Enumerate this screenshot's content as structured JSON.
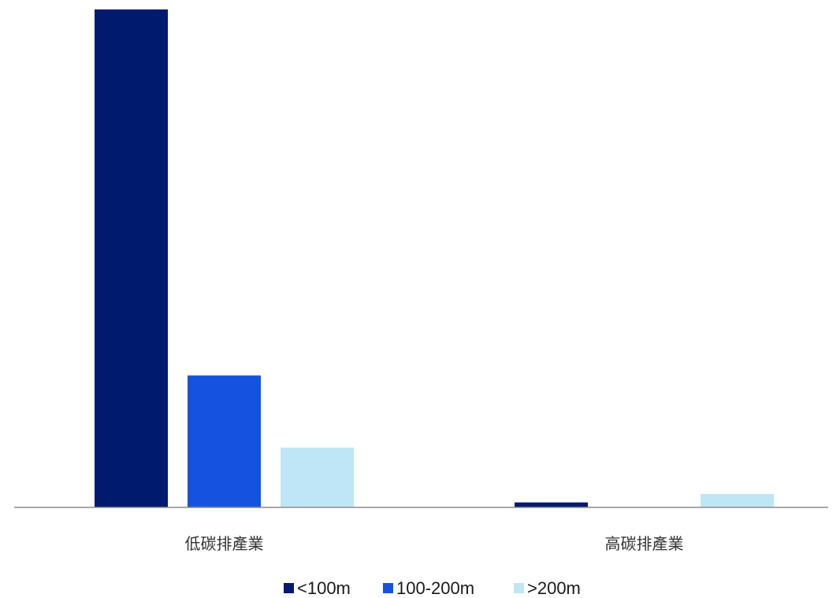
{
  "chart_data": {
    "type": "bar",
    "title": "",
    "xlabel": "",
    "ylabel": "",
    "categories": [
      "低碳排產業",
      "高碳排產業"
    ],
    "series": [
      {
        "name": "<100m",
        "color": "#001a6e",
        "values": [
          100,
          1.0
        ]
      },
      {
        "name": "100-200m",
        "color": "#1652e0",
        "values": [
          26.5,
          0
        ]
      },
      {
        "name": ">200m",
        "color": "#bfe6f6",
        "values": [
          12.0,
          2.7
        ]
      }
    ],
    "ylim": [
      0,
      100
    ],
    "y_axis_visible": false,
    "grid": false,
    "legend_position": "bottom"
  }
}
